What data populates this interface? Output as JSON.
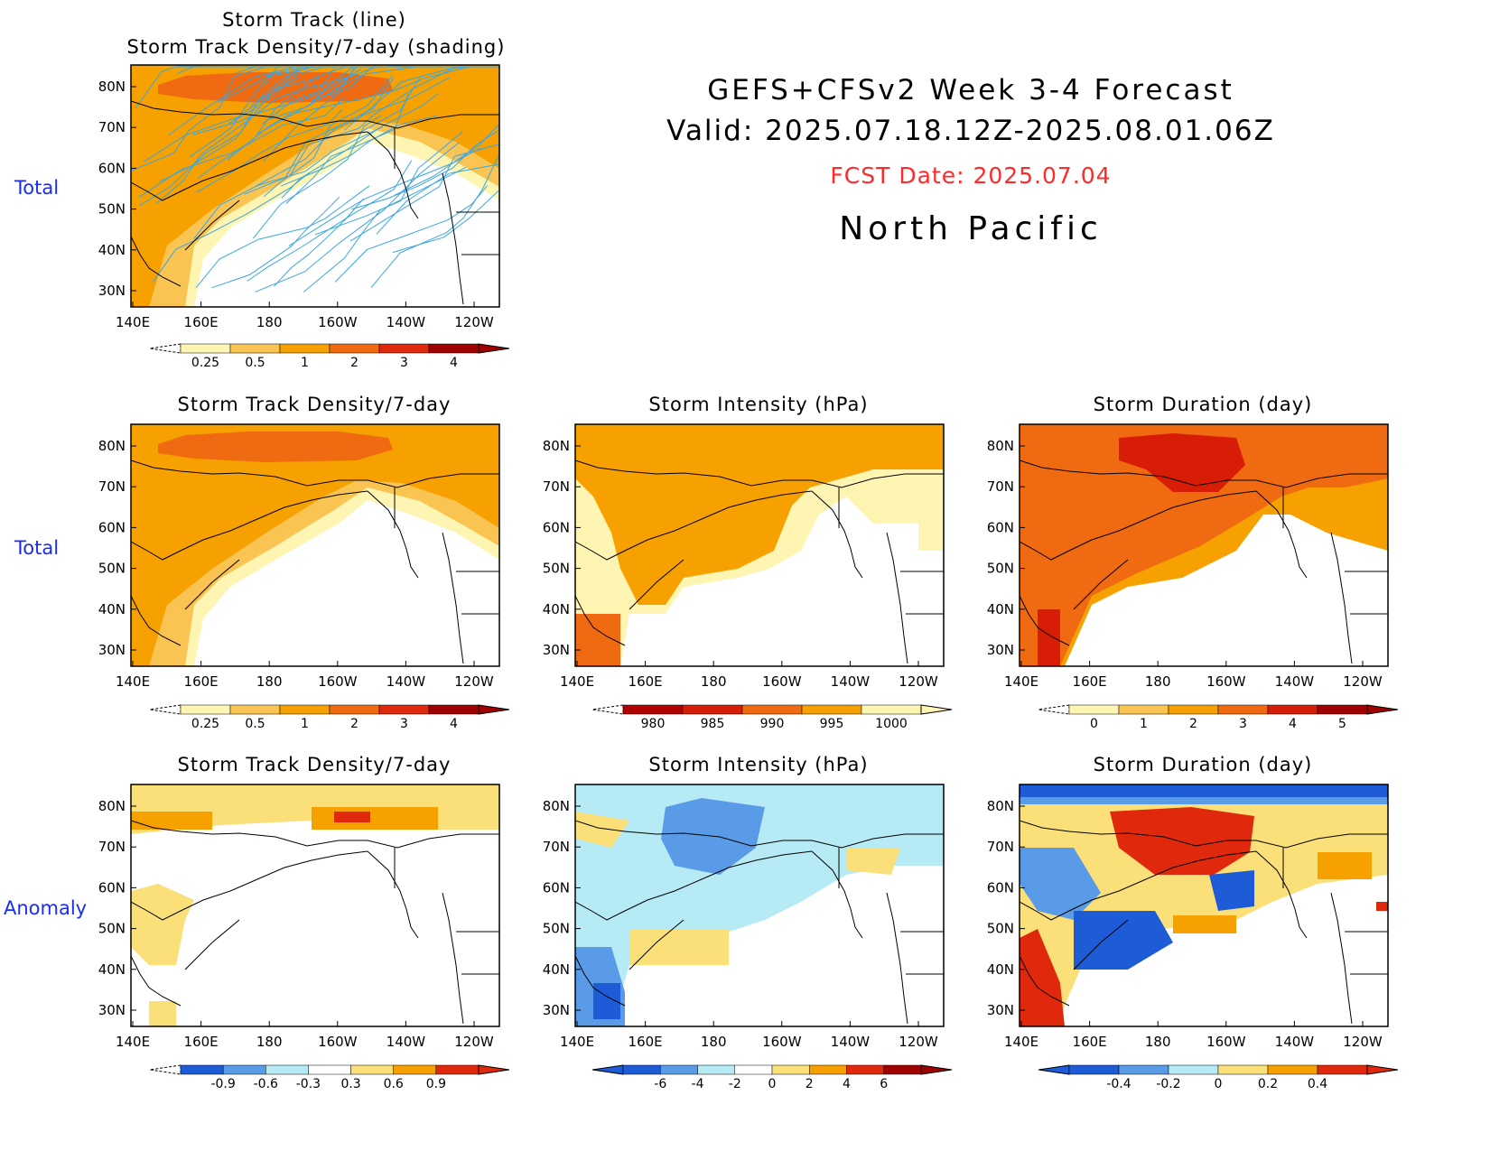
{
  "header": {
    "title": "GEFS+CFSv2 Week 3-4 Forecast",
    "valid": "Valid: 2025.07.18.12Z-2025.08.01.06Z",
    "fcst_date": "FCST Date: 2025.07.04",
    "region": "North Pacific"
  },
  "rows": {
    "total_top": "Total",
    "total_mid": "Total",
    "anomaly": "Anomaly"
  },
  "axis": {
    "lon_ticks": [
      "140E",
      "160E",
      "180",
      "160W",
      "140W",
      "120W"
    ],
    "lat_ticks": [
      "80N",
      "70N",
      "60N",
      "50N",
      "40N",
      "30N"
    ]
  },
  "colors": {
    "density": [
      "#fff5b3",
      "#f9c452",
      "#f6a100",
      "#f06a11",
      "#e0280c",
      "#a00000"
    ],
    "intensity": [
      "#b00000",
      "#d81d07",
      "#f06a11",
      "#f6a100",
      "#fff5b3"
    ],
    "duration": [
      "#fff5b3",
      "#f9c452",
      "#f6a100",
      "#f06a11",
      "#d81d07",
      "#a00000"
    ],
    "anom_density": [
      "#1e5bd6",
      "#5a9be8",
      "#b6ebf5",
      "#ffffff",
      "#fbe07a",
      "#f6a100",
      "#e0280c"
    ],
    "anom_intensity": [
      "#1e5bd6",
      "#5a9be8",
      "#b6ebf5",
      "#ffffff",
      "#fbe07a",
      "#f6a100",
      "#e0280c",
      "#a00000"
    ],
    "anom_duration": [
      "#1e5bd6",
      "#5a9be8",
      "#b6ebf5",
      "#fbe07a",
      "#f6a100",
      "#e0280c"
    ],
    "track_line": "#3aa6e0",
    "row_label": "#1a2cf0",
    "fcst": "#ff2a2a"
  },
  "chart_data": [
    {
      "type": "heatmap",
      "title": "Storm Track (line)",
      "subtitle": "Storm Track Density/7-day (shading)",
      "row": "Total",
      "colorbar": {
        "labels": [
          "0.25",
          "0.5",
          "1",
          "2",
          "3",
          "4"
        ],
        "palette": "density",
        "extend": "both"
      },
      "x_range": [
        "140E",
        "120W"
      ],
      "y_range": [
        "25N",
        "85N"
      ]
    },
    {
      "type": "heatmap",
      "title": "Storm Track Density/7-day",
      "row": "Total",
      "colorbar": {
        "labels": [
          "0.25",
          "0.5",
          "1",
          "2",
          "3",
          "4"
        ],
        "palette": "density",
        "extend": "both"
      },
      "x_range": [
        "140E",
        "120W"
      ],
      "y_range": [
        "25N",
        "85N"
      ]
    },
    {
      "type": "heatmap",
      "title": "Storm Intensity (hPa)",
      "row": "Total",
      "colorbar": {
        "labels": [
          "980",
          "985",
          "990",
          "995",
          "1000"
        ],
        "palette": "intensity",
        "extend": "both"
      },
      "x_range": [
        "140E",
        "120W"
      ],
      "y_range": [
        "25N",
        "85N"
      ]
    },
    {
      "type": "heatmap",
      "title": "Storm Duration (day)",
      "row": "Total",
      "colorbar": {
        "labels": [
          "0",
          "1",
          "2",
          "3",
          "4",
          "5"
        ],
        "palette": "duration",
        "extend": "both"
      },
      "x_range": [
        "140E",
        "120W"
      ],
      "y_range": [
        "25N",
        "85N"
      ]
    },
    {
      "type": "heatmap",
      "title": "Storm Track Density/7-day",
      "row": "Anomaly",
      "colorbar": {
        "labels": [
          "-0.9",
          "-0.6",
          "-0.3",
          "0.3",
          "0.6",
          "0.9"
        ],
        "palette": "anom_density",
        "extend": "both"
      },
      "x_range": [
        "140E",
        "120W"
      ],
      "y_range": [
        "25N",
        "85N"
      ]
    },
    {
      "type": "heatmap",
      "title": "Storm Intensity (hPa)",
      "row": "Anomaly",
      "colorbar": {
        "labels": [
          "-6",
          "-4",
          "-2",
          "0",
          "2",
          "4",
          "6"
        ],
        "palette": "anom_intensity",
        "extend": "both"
      },
      "x_range": [
        "140E",
        "120W"
      ],
      "y_range": [
        "25N",
        "85N"
      ]
    },
    {
      "type": "heatmap",
      "title": "Storm Duration (day)",
      "row": "Anomaly",
      "colorbar": {
        "labels": [
          "-0.4",
          "-0.2",
          "0",
          "0.2",
          "0.4"
        ],
        "palette": "anom_duration",
        "extend": "both"
      },
      "x_range": [
        "140E",
        "120W"
      ],
      "y_range": [
        "25N",
        "85N"
      ]
    }
  ]
}
